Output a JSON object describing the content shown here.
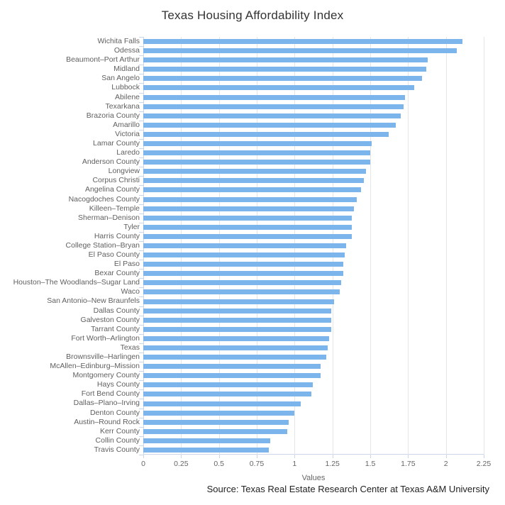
{
  "source": "Source: Texas Real Estate Research Center at Texas A&M University",
  "colors": {
    "bar": "#7cb5ec",
    "grid": "#e6e6e6",
    "axis": "#ccd6eb",
    "label": "#606060",
    "title": "#333333",
    "source": "#222222"
  },
  "chart_data": {
    "type": "bar",
    "orientation": "horizontal",
    "title": "Texas Housing Affordability Index",
    "xlabel": "Values",
    "ylabel": "",
    "xlim": [
      0,
      2.25
    ],
    "xticks": [
      0,
      0.25,
      0.5,
      0.75,
      1,
      1.25,
      1.5,
      1.75,
      2,
      2.25
    ],
    "xtick_labels": [
      "0",
      "0.25",
      "0.5",
      "0.75",
      "1",
      "1.25",
      "1.5",
      "1.75",
      "2",
      "2.25"
    ],
    "grid": true,
    "legend": false,
    "categories": [
      "Wichita Falls",
      "Odessa",
      "Beaumont–Port Arthur",
      "Midland",
      "San Angelo",
      "Lubbock",
      "Abilene",
      "Texarkana",
      "Brazoria County",
      "Amarillo",
      "Victoria",
      "Lamar County",
      "Laredo",
      "Anderson County",
      "Longview",
      "Corpus Christi",
      "Angelina County",
      "Nacogdoches County",
      "Killeen–Temple",
      "Sherman–Denison",
      "Tyler",
      "Harris County",
      "College Station–Bryan",
      "El Paso County",
      "El Paso",
      "Bexar County",
      "Houston–The Woodlands–Sugar Land",
      "Waco",
      "San Antonio–New Braunfels",
      "Dallas County",
      "Galveston County",
      "Tarrant County",
      "Fort Worth–Arlington",
      "Texas",
      "Brownsville–Harlingen",
      "McAllen–Edinburg–Mission",
      "Montgomery County",
      "Hays County",
      "Fort Bend County",
      "Dallas–Plano–Irving",
      "Denton County",
      "Austin–Round Rock",
      "Kerr County",
      "Collin County",
      "Travis County"
    ],
    "values": [
      2.11,
      2.07,
      1.88,
      1.87,
      1.84,
      1.79,
      1.73,
      1.72,
      1.7,
      1.67,
      1.62,
      1.51,
      1.5,
      1.5,
      1.47,
      1.46,
      1.44,
      1.41,
      1.39,
      1.38,
      1.38,
      1.38,
      1.34,
      1.33,
      1.32,
      1.32,
      1.31,
      1.3,
      1.26,
      1.24,
      1.24,
      1.24,
      1.23,
      1.22,
      1.21,
      1.17,
      1.17,
      1.12,
      1.11,
      1.04,
      1.0,
      0.96,
      0.95,
      0.84,
      0.83
    ]
  }
}
